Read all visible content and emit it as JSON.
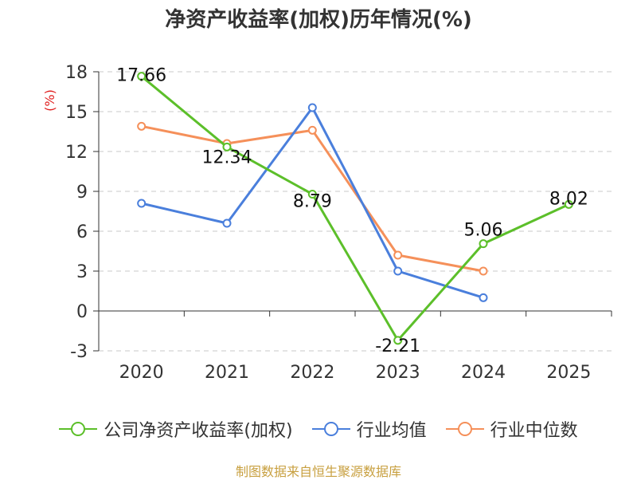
{
  "chart_data": {
    "type": "line",
    "title": "净资产收益率(加权)历年情况(%)",
    "ylabel": "(%)",
    "xlabel": "",
    "categories": [
      "2020",
      "2021",
      "2022",
      "2023",
      "2024",
      "2025"
    ],
    "ylim": [
      -3,
      18
    ],
    "yticks": [
      -3,
      0,
      3,
      6,
      9,
      12,
      15,
      18
    ],
    "grid": true,
    "legend_position": "bottom",
    "series": [
      {
        "name": "公司净资产收益率(加权)",
        "color": "#5cbf2a",
        "values": [
          17.66,
          12.34,
          8.79,
          -2.21,
          5.06,
          8.02
        ],
        "labels": [
          "17.66",
          "12.34",
          "8.79",
          "-2.21",
          "5.06",
          "8.02"
        ]
      },
      {
        "name": "行业均值",
        "color": "#4a7fdc",
        "values": [
          8.1,
          6.6,
          15.3,
          3.0,
          1.0,
          null
        ]
      },
      {
        "name": "行业中位数",
        "color": "#f5905a",
        "values": [
          13.9,
          12.6,
          13.6,
          4.2,
          3.0,
          null
        ]
      }
    ]
  },
  "source": "制图数据来自恒生聚源数据库"
}
